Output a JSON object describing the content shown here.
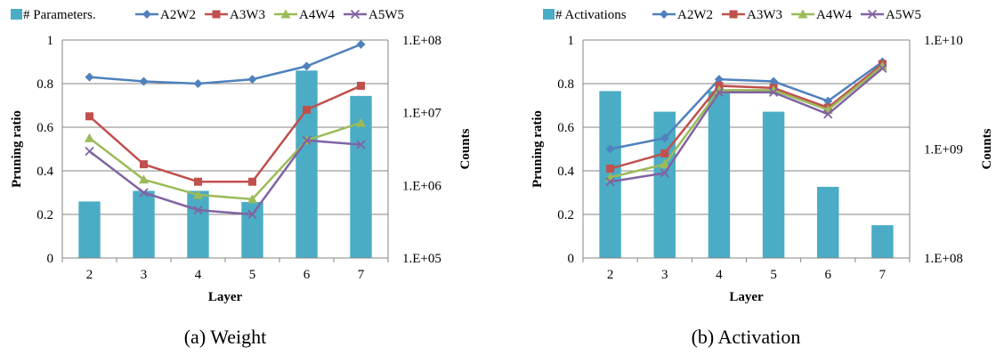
{
  "chart_data": [
    {
      "type": "bar+line",
      "caption": "(a) Weight",
      "xlabel": "Layer",
      "ylabel_left": "Pruning ratio",
      "ylabel_right": "Counts",
      "categories": [
        "2",
        "3",
        "4",
        "5",
        "6",
        "7"
      ],
      "ylim_left": [
        0,
        1
      ],
      "yticks_left": [
        "0",
        "0.2",
        "0.4",
        "0.6",
        "0.8",
        "1"
      ],
      "ylim_right_log10": [
        5,
        8
      ],
      "yticks_right": [
        "1.E+05",
        "1.E+06",
        "1.E+07",
        "1.E+08"
      ],
      "grid": "horizontal",
      "legend_position": "top",
      "bar_series": {
        "name": "# Parameters.",
        "values": [
          600000,
          840000,
          840000,
          590000,
          38000000,
          17000000
        ],
        "color": "#4BACC6"
      },
      "series": [
        {
          "name": "A2W2",
          "values": [
            0.83,
            0.81,
            0.8,
            0.82,
            0.88,
            0.98
          ],
          "color": "#4F81BD",
          "marker": "diamond"
        },
        {
          "name": "A3W3",
          "values": [
            0.65,
            0.43,
            0.35,
            0.35,
            0.68,
            0.79
          ],
          "color": "#C0504D",
          "marker": "square"
        },
        {
          "name": "A4W4",
          "values": [
            0.55,
            0.36,
            0.29,
            0.27,
            0.54,
            0.62
          ],
          "color": "#9BBB59",
          "marker": "triangle"
        },
        {
          "name": "A5W5",
          "values": [
            0.49,
            0.3,
            0.22,
            0.2,
            0.54,
            0.52
          ],
          "color": "#8064A2",
          "marker": "x"
        }
      ]
    },
    {
      "type": "bar+line",
      "caption": "(b) Activation",
      "xlabel": "Layer",
      "ylabel_left": "Pruning ratio",
      "ylabel_right": "Counts",
      "categories": [
        "2",
        "3",
        "4",
        "5",
        "6",
        "7"
      ],
      "ylim_left": [
        0,
        1
      ],
      "yticks_left": [
        "0",
        "0.2",
        "0.4",
        "0.6",
        "0.8",
        "1"
      ],
      "ylim_right_log10": [
        8,
        10
      ],
      "yticks_right": [
        "1.E+08",
        "1.E+09",
        "1.E+10"
      ],
      "grid": "horizontal",
      "legend_position": "top",
      "bar_series": {
        "name": "# Activations",
        "values": [
          3400000000,
          2200000000,
          3400000000,
          2200000000,
          450000000,
          200000000
        ],
        "color": "#4BACC6"
      },
      "series": [
        {
          "name": "A2W2",
          "values": [
            0.5,
            0.55,
            0.82,
            0.81,
            0.72,
            0.9
          ],
          "color": "#4F81BD",
          "marker": "diamond"
        },
        {
          "name": "A3W3",
          "values": [
            0.41,
            0.48,
            0.79,
            0.78,
            0.69,
            0.89
          ],
          "color": "#C0504D",
          "marker": "square"
        },
        {
          "name": "A4W4",
          "values": [
            0.37,
            0.43,
            0.77,
            0.77,
            0.68,
            0.88
          ],
          "color": "#9BBB59",
          "marker": "triangle"
        },
        {
          "name": "A5W5",
          "values": [
            0.35,
            0.39,
            0.76,
            0.76,
            0.66,
            0.87
          ],
          "color": "#8064A2",
          "marker": "x"
        }
      ]
    }
  ]
}
